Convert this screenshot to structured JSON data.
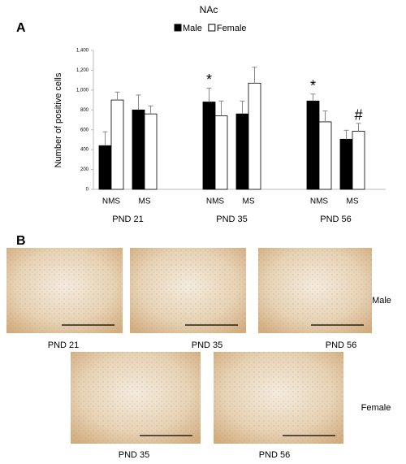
{
  "chart_data": {
    "type": "bar",
    "panel_label": "A",
    "title": "NAc",
    "ylabel": "Number of positive cells",
    "categories": [
      "NMS",
      "MS",
      "NMS",
      "MS",
      "NMS",
      "MS"
    ],
    "groups": [
      "PND 21",
      "PND 35",
      "PND 56"
    ],
    "series": [
      {
        "name": "Male",
        "color": "#000000",
        "values": [
          440,
          800,
          880,
          760,
          890,
          505
        ],
        "errors": [
          140,
          150,
          140,
          130,
          70,
          90
        ],
        "markers": [
          null,
          null,
          "*",
          null,
          "*",
          null
        ]
      },
      {
        "name": "Female",
        "color": "#ffffff",
        "values": [
          900,
          760,
          740,
          1070,
          680,
          585
        ],
        "errors": [
          80,
          80,
          150,
          160,
          110,
          80
        ],
        "markers": [
          null,
          null,
          null,
          null,
          null,
          "#"
        ]
      }
    ],
    "ylim": [
      0,
      1400
    ],
    "yticks": [
      0,
      200,
      400,
      600,
      800,
      {
        "value": 1000,
        "label": "1,000"
      },
      {
        "value": 1200,
        "label": "1,200"
      },
      {
        "value": 1400,
        "label": "1,400"
      }
    ],
    "grid": false
  },
  "panel_b": {
    "label": "B",
    "rows": [
      {
        "label": "Male",
        "images": [
          "PND 21",
          "PND 35",
          "PND 56"
        ]
      },
      {
        "label": "Female",
        "images": [
          "PND 35",
          "PND 56"
        ]
      }
    ]
  }
}
